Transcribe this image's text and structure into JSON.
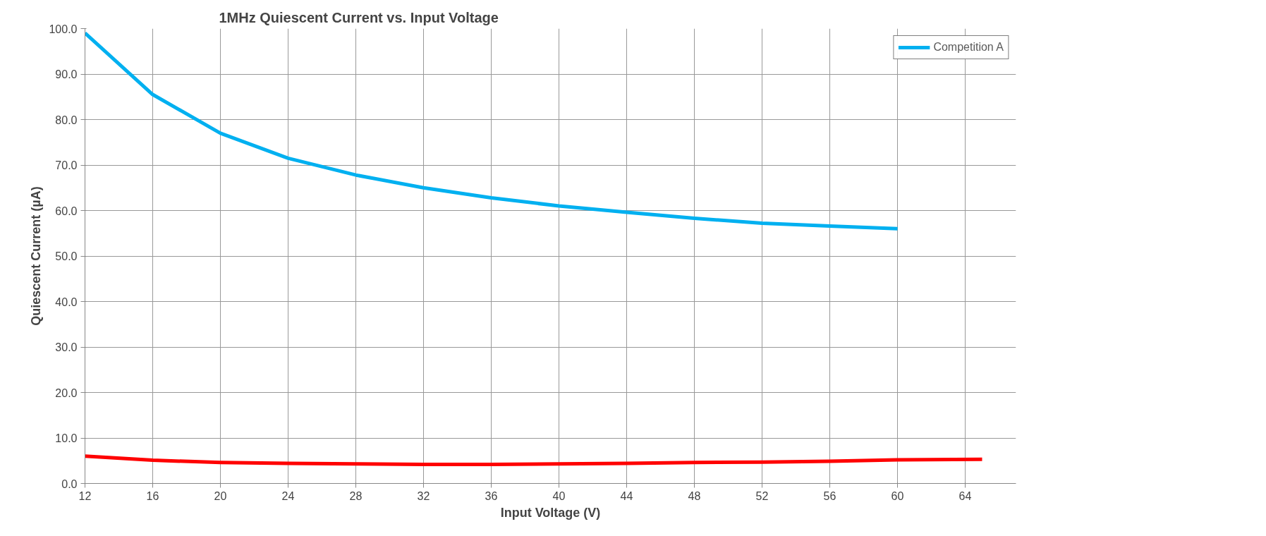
{
  "chart_data": {
    "type": "line",
    "title": "1MHz Quiescent Current vs. Input Voltage",
    "xlabel": "Input Voltage (V)",
    "ylabel": "Quiescent Current (µA)",
    "xlim": [
      12,
      67
    ],
    "xticks": [
      12,
      16,
      20,
      24,
      28,
      32,
      36,
      40,
      44,
      48,
      52,
      56,
      60,
      64
    ],
    "ylim": [
      0,
      100
    ],
    "yticks": [
      {
        "value": 0,
        "label": "0.0"
      },
      {
        "value": 10,
        "label": "10.0"
      },
      {
        "value": 20,
        "label": "20.0"
      },
      {
        "value": 30,
        "label": "30.0"
      },
      {
        "value": 40,
        "label": "40.0"
      },
      {
        "value": 50,
        "label": "50.0"
      },
      {
        "value": 60,
        "label": "60.0"
      },
      {
        "value": 70,
        "label": "70.0"
      },
      {
        "value": 80,
        "label": "80.0"
      },
      {
        "value": 90,
        "label": "90.0"
      },
      {
        "value": 100,
        "label": "100.0"
      }
    ],
    "grid": true,
    "legend": "top right",
    "series": [
      {
        "name": "Competition A",
        "color": "#00b0f0",
        "x": [
          12,
          16,
          20,
          24,
          28,
          32,
          36,
          40,
          44,
          48,
          52,
          56,
          60
        ],
        "values": [
          99,
          85.5,
          77,
          71.5,
          67.8,
          65,
          62.8,
          61,
          59.6,
          58.3,
          57.2,
          56.6,
          56
        ]
      },
      {
        "color": "#ff0000",
        "x": [
          12,
          16,
          20,
          24,
          28,
          32,
          36,
          40,
          44,
          48,
          52,
          56,
          60,
          65
        ],
        "values": [
          6.0,
          5.1,
          4.6,
          4.4,
          4.3,
          4.2,
          4.2,
          4.3,
          4.4,
          4.6,
          4.7,
          4.9,
          5.2,
          5.3
        ]
      }
    ]
  }
}
